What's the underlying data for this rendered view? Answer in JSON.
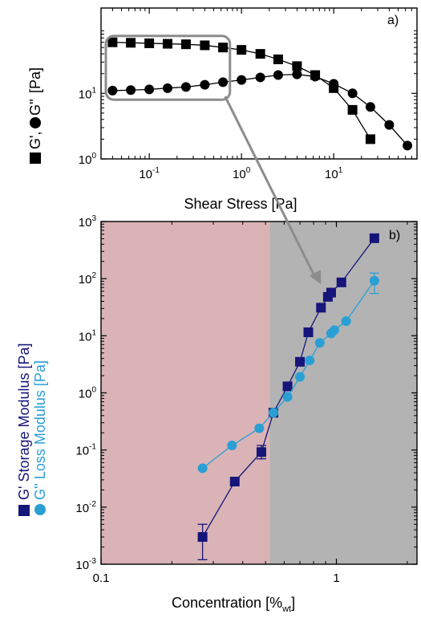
{
  "chart_data": [
    {
      "panel": "a",
      "type": "scatter",
      "panel_label": "a)",
      "xlabel": "Shear Stress [Pa]",
      "ylabel_prefix": "G',",
      "ylabel_mid": "G''",
      "ylabel_suffix": " [Pa]",
      "xscale": "log",
      "yscale": "log",
      "xlim": [
        0.03,
        80
      ],
      "ylim": [
        1,
        200
      ],
      "x_ticks": [
        {
          "base": "10",
          "exp": "-1",
          "v": 0.1
        },
        {
          "base": "10",
          "exp": "0",
          "v": 1
        },
        {
          "base": "10",
          "exp": "1",
          "v": 10
        }
      ],
      "y_ticks": [
        {
          "base": "10",
          "exp": "0",
          "v": 1
        },
        {
          "base": "10",
          "exp": "1",
          "v": 10
        }
      ],
      "series": [
        {
          "marker": "square",
          "color": "#000000",
          "points": [
            [
              0.04,
              60
            ],
            [
              0.063,
              59
            ],
            [
              0.1,
              58
            ],
            [
              0.158,
              57
            ],
            [
              0.25,
              56
            ],
            [
              0.4,
              54
            ],
            [
              0.63,
              50
            ],
            [
              1.0,
              46
            ],
            [
              1.6,
              40
            ],
            [
              2.5,
              33
            ],
            [
              4.0,
              26
            ],
            [
              6.3,
              19
            ],
            [
              10,
              12
            ],
            [
              16,
              5.6
            ],
            [
              25,
              2.0
            ]
          ]
        },
        {
          "marker": "circle",
          "color": "#000000",
          "points": [
            [
              0.04,
              11
            ],
            [
              0.063,
              11.2
            ],
            [
              0.1,
              11.5
            ],
            [
              0.158,
              12
            ],
            [
              0.25,
              12.5
            ],
            [
              0.4,
              13.5
            ],
            [
              0.63,
              14.8
            ],
            [
              1.0,
              16
            ],
            [
              1.6,
              17.5
            ],
            [
              2.5,
              19
            ],
            [
              4.0,
              19.5
            ],
            [
              6.3,
              18
            ],
            [
              10,
              14
            ],
            [
              16,
              10
            ],
            [
              25,
              6.2
            ],
            [
              40,
              3.3
            ],
            [
              63,
              1.6
            ]
          ]
        }
      ],
      "callout_box_x": [
        0.03,
        0.75
      ],
      "callout_box_y": [
        8,
        75
      ]
    },
    {
      "panel": "b",
      "type": "scatter",
      "panel_label": "b)",
      "xlabel_main": "Concentration [%",
      "xlabel_sub": "wt",
      "xlabel_end": "]",
      "ylabel_line1": "G' Storage Modulus [Pa]",
      "ylabel_line2": "G'' Loss Modulus [Pa]",
      "xscale": "log",
      "yscale": "log",
      "xlim": [
        0.1,
        2.2
      ],
      "ylim": [
        0.001,
        1000
      ],
      "x_ticks": [
        {
          "label": "0.1",
          "v": 0.1
        },
        {
          "label": "1",
          "v": 1
        }
      ],
      "y_ticks": [
        {
          "base": "10",
          "exp": "-3",
          "v": 0.001
        },
        {
          "base": "10",
          "exp": "-2",
          "v": 0.01
        },
        {
          "base": "10",
          "exp": "-1",
          "v": 0.1
        },
        {
          "base": "10",
          "exp": "0",
          "v": 1
        },
        {
          "base": "10",
          "exp": "1",
          "v": 10
        },
        {
          "base": "10",
          "exp": "2",
          "v": 100
        },
        {
          "base": "10",
          "exp": "3",
          "v": 1000
        }
      ],
      "regions": [
        {
          "x": [
            0.1,
            0.52
          ],
          "color": "#d9b3b5"
        },
        {
          "x": [
            0.52,
            2.2
          ],
          "color": "#b3b3b3"
        }
      ],
      "series": [
        {
          "name": "G' Storage Modulus",
          "marker": "square",
          "color": "#15157a",
          "points": [
            [
              0.27,
              0.003
            ],
            [
              0.37,
              0.028
            ],
            [
              0.48,
              0.092
            ],
            [
              0.54,
              0.45
            ],
            [
              0.62,
              1.3
            ],
            [
              0.7,
              3.5
            ],
            [
              0.76,
              11.5
            ],
            [
              0.86,
              31
            ],
            [
              0.92,
              48
            ],
            [
              0.95,
              57
            ],
            [
              1.05,
              86
            ],
            [
              1.45,
              510
            ]
          ],
          "errors": [
            [
              0.27,
              0.0012,
              0.005
            ],
            [
              0.48,
              0.07,
              0.12
            ]
          ]
        },
        {
          "name": "G'' Loss Modulus",
          "marker": "circle",
          "color": "#2a9fd4",
          "points": [
            [
              0.27,
              0.048
            ],
            [
              0.36,
              0.12
            ],
            [
              0.47,
              0.24
            ],
            [
              0.54,
              0.45
            ],
            [
              0.62,
              0.85
            ],
            [
              0.7,
              1.9
            ],
            [
              0.77,
              3.7
            ],
            [
              0.85,
              7.5
            ],
            [
              0.95,
              11
            ],
            [
              0.98,
              12.5
            ],
            [
              1.1,
              18
            ],
            [
              1.45,
              92
            ]
          ],
          "errors": [
            [
              1.45,
              55,
              125
            ]
          ]
        }
      ]
    }
  ]
}
